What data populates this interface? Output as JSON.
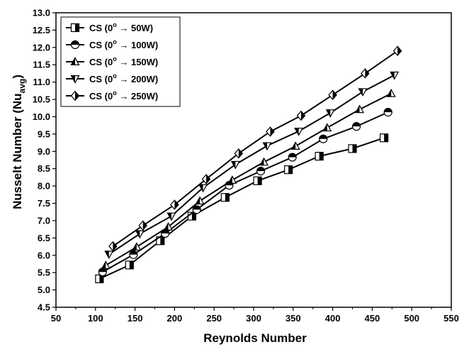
{
  "chart_data": {
    "type": "line",
    "xlabel": "Reynolds Number",
    "ylabel": "Nusselt Number (Nu",
    "ylabel_sub": "avg",
    "ylabel_end": ")",
    "xlim": [
      50,
      550
    ],
    "ylim": [
      4.5,
      13.0
    ],
    "xticks": [
      50,
      100,
      150,
      200,
      250,
      300,
      350,
      400,
      450,
      500,
      550
    ],
    "yticks": [
      4.5,
      5.0,
      5.5,
      6.0,
      6.5,
      7.0,
      7.5,
      8.0,
      8.5,
      9.0,
      9.5,
      10.0,
      10.5,
      11.0,
      11.5,
      12.0,
      12.5,
      13.0
    ],
    "legend_position": "top-left",
    "grid": false,
    "series": [
      {
        "name": "CS (0",
        "name_sup": "o",
        "name_tail": " → 50W)",
        "marker": "square-half",
        "x": [
          105,
          143,
          182,
          222,
          264,
          305,
          344,
          383,
          425,
          465
        ],
        "y": [
          5.32,
          5.72,
          6.42,
          7.13,
          7.67,
          8.15,
          8.47,
          8.86,
          9.08,
          9.39
        ]
      },
      {
        "name": "CS (0",
        "name_sup": "o",
        "name_tail": " → 100W)",
        "marker": "circle-half",
        "x": [
          109,
          148,
          188,
          228,
          269,
          309,
          349,
          388,
          430,
          470
        ],
        "y": [
          5.52,
          6.02,
          6.63,
          7.32,
          8.02,
          8.43,
          8.83,
          9.36,
          9.72,
          10.13
        ]
      },
      {
        "name": "CS (0",
        "name_sup": "o",
        "name_tail": " → 150W)",
        "marker": "triangle-up-half",
        "x": [
          113,
          152,
          192,
          232,
          273,
          313,
          353,
          393,
          434,
          474
        ],
        "y": [
          5.71,
          6.24,
          6.82,
          7.57,
          8.17,
          8.69,
          9.15,
          9.68,
          10.21,
          10.67
        ]
      },
      {
        "name": "CS (0",
        "name_sup": "o",
        "name_tail": " → 200W)",
        "marker": "triangle-down-half",
        "x": [
          117,
          156,
          196,
          236,
          277,
          317,
          357,
          397,
          438,
          478
        ],
        "y": [
          6.03,
          6.62,
          7.13,
          7.95,
          8.62,
          9.16,
          9.58,
          10.11,
          10.72,
          11.2
        ]
      },
      {
        "name": "CS (0",
        "name_sup": "o",
        "name_tail": " → 250W)",
        "marker": "diamond-half",
        "x": [
          122,
          160,
          200,
          240,
          281,
          321,
          360,
          400,
          441,
          482
        ],
        "y": [
          6.26,
          6.86,
          7.46,
          8.2,
          8.94,
          9.57,
          10.03,
          10.63,
          11.25,
          11.9
        ]
      }
    ]
  }
}
